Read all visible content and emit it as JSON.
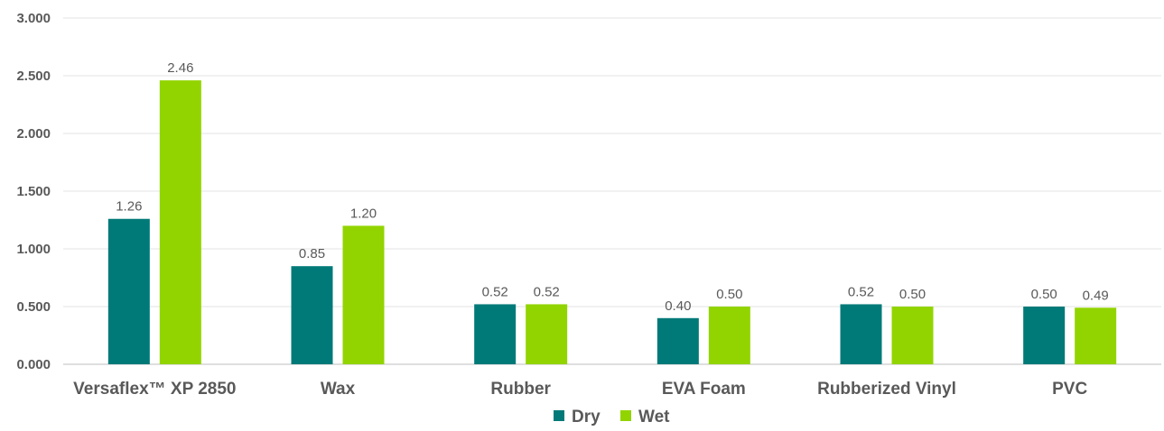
{
  "chart_data": {
    "type": "bar",
    "categories": [
      "Versaflex™ XP 2850",
      "Wax",
      "Rubber",
      "EVA Foam",
      "Rubberized Vinyl",
      "PVC"
    ],
    "series": [
      {
        "name": "Dry",
        "color": "#007a78",
        "values": [
          1.26,
          0.85,
          0.52,
          0.4,
          0.52,
          0.5
        ],
        "labels": [
          "1.26",
          "0.85",
          "0.52",
          "0.40",
          "0.52",
          "0.50"
        ]
      },
      {
        "name": "Wet",
        "color": "#92d400",
        "values": [
          2.46,
          1.2,
          0.52,
          0.5,
          0.5,
          0.49
        ],
        "labels": [
          "2.46",
          "1.20",
          "0.52",
          "0.50",
          "0.50",
          "0.49"
        ]
      }
    ],
    "yticks": [
      "0.000",
      "0.500",
      "1.000",
      "1.500",
      "2.000",
      "2.500",
      "3.000"
    ],
    "ylim": [
      0,
      3
    ],
    "grid": true,
    "legend_position": "bottom-center",
    "title": "",
    "xlabel": "",
    "ylabel": ""
  }
}
